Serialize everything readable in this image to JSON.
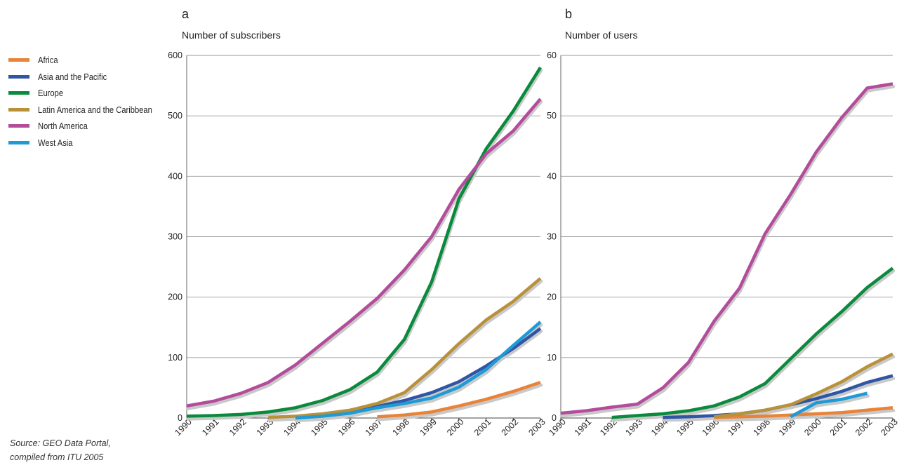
{
  "legend": [
    {
      "name": "Africa",
      "color": "#e8833a"
    },
    {
      "name": "Asia and the Pacific",
      "color": "#2f55a4"
    },
    {
      "name": "Europe",
      "color": "#0a8a3c"
    },
    {
      "name": "Latin America and the Caribbean",
      "color": "#b8913a"
    },
    {
      "name": "North America",
      "color": "#b44c9c"
    },
    {
      "name": "West Asia",
      "color": "#1e9ad6"
    }
  ],
  "source": {
    "line1": "Source: GEO Data Portal,",
    "line2": "compiled from ITU 2005"
  },
  "chart_data": [
    {
      "type": "line",
      "panel_label": "a",
      "ylabel": "Number of subscribers",
      "xlabel": "",
      "x": [
        1990,
        1991,
        1992,
        1993,
        1994,
        1995,
        1996,
        1997,
        1998,
        1999,
        2000,
        2001,
        2002,
        2003
      ],
      "ylim": [
        0,
        600
      ],
      "yticks": [
        0,
        100,
        200,
        300,
        400,
        500,
        600
      ],
      "grid": true,
      "series": [
        {
          "name": "Africa",
          "color": "#e8833a",
          "values": [
            null,
            null,
            null,
            null,
            null,
            null,
            null,
            2,
            5,
            10,
            20,
            31,
            44,
            59
          ]
        },
        {
          "name": "Asia and the Pacific",
          "color": "#2f55a4",
          "values": [
            null,
            null,
            null,
            null,
            0,
            4,
            10,
            19,
            29,
            42,
            60,
            86,
            115,
            148
          ]
        },
        {
          "name": "Europe",
          "color": "#0a8a3c",
          "values": [
            3,
            4,
            6,
            10,
            17,
            29,
            47,
            76,
            130,
            225,
            362,
            445,
            508,
            580
          ]
        },
        {
          "name": "Latin America and the Caribbean",
          "color": "#b8913a",
          "values": [
            null,
            null,
            null,
            1,
            3,
            7,
            13,
            24,
            42,
            80,
            123,
            162,
            193,
            231
          ]
        },
        {
          "name": "North America",
          "color": "#b44c9c",
          "values": [
            20,
            28,
            41,
            59,
            88,
            124,
            160,
            198,
            245,
            300,
            378,
            437,
            475,
            528
          ]
        },
        {
          "name": "West Asia",
          "color": "#1e9ad6",
          "values": [
            null,
            null,
            null,
            null,
            0,
            3,
            8,
            17,
            24,
            33,
            51,
            80,
            120,
            159
          ]
        }
      ]
    },
    {
      "type": "line",
      "panel_label": "b",
      "ylabel": "Number of users",
      "xlabel": "",
      "x": [
        1990,
        1991,
        1992,
        1993,
        1994,
        1995,
        1996,
        1997,
        1998,
        1999,
        2000,
        2001,
        2002,
        2003
      ],
      "ylim": [
        0,
        60
      ],
      "yticks": [
        0,
        10,
        20,
        30,
        40,
        50,
        60
      ],
      "grid": true,
      "series": [
        {
          "name": "Africa",
          "color": "#e8833a",
          "values": [
            null,
            null,
            null,
            null,
            null,
            null,
            0.1,
            0.2,
            0.3,
            0.5,
            0.7,
            0.9,
            1.3,
            1.7
          ]
        },
        {
          "name": "Asia and the Pacific",
          "color": "#2f55a4",
          "values": [
            null,
            null,
            null,
            null,
            0.1,
            0.2,
            0.4,
            0.7,
            1.3,
            2.2,
            3.2,
            4.4,
            5.9,
            7.0
          ]
        },
        {
          "name": "Europe",
          "color": "#0a8a3c",
          "values": [
            null,
            null,
            0.1,
            0.4,
            0.7,
            1.2,
            2.0,
            3.5,
            5.7,
            9.8,
            13.9,
            17.6,
            21.6,
            24.8
          ]
        },
        {
          "name": "Latin America and the Caribbean",
          "color": "#b8913a",
          "values": [
            null,
            null,
            null,
            null,
            null,
            null,
            0.2,
            0.7,
            1.3,
            2.2,
            4.0,
            6.0,
            8.5,
            10.6
          ]
        },
        {
          "name": "North America",
          "color": "#b44c9c",
          "values": [
            0.8,
            1.2,
            1.8,
            2.3,
            5.0,
            9.2,
            16.0,
            21.5,
            30.5,
            37.0,
            44.0,
            49.7,
            54.6,
            55.3
          ]
        },
        {
          "name": "West Asia",
          "color": "#1e9ad6",
          "values": [
            null,
            null,
            null,
            null,
            null,
            null,
            null,
            null,
            null,
            0.2,
            2.5,
            3.1,
            4.1,
            null
          ]
        }
      ]
    }
  ]
}
